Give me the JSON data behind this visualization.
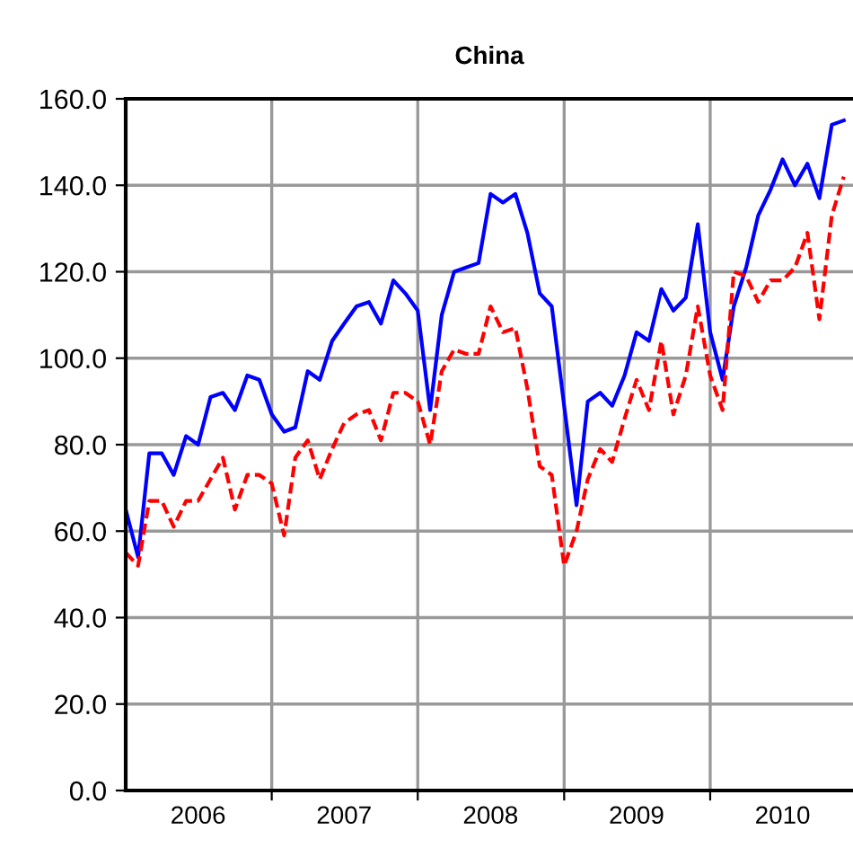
{
  "chart_data": {
    "type": "line",
    "title": "China",
    "x": [
      "2006-01",
      "2006-02",
      "2006-03",
      "2006-04",
      "2006-05",
      "2006-06",
      "2006-07",
      "2006-08",
      "2006-09",
      "2006-10",
      "2006-11",
      "2006-12",
      "2007-01",
      "2007-02",
      "2007-03",
      "2007-04",
      "2007-05",
      "2007-06",
      "2007-07",
      "2007-08",
      "2007-09",
      "2007-10",
      "2007-11",
      "2007-12",
      "2008-01",
      "2008-02",
      "2008-03",
      "2008-04",
      "2008-05",
      "2008-06",
      "2008-07",
      "2008-08",
      "2008-09",
      "2008-10",
      "2008-11",
      "2008-12",
      "2009-01",
      "2009-02",
      "2009-03",
      "2009-04",
      "2009-05",
      "2009-06",
      "2009-07",
      "2009-08",
      "2009-09",
      "2009-10",
      "2009-11",
      "2009-12",
      "2010-01",
      "2010-02",
      "2010-03",
      "2010-04",
      "2010-05",
      "2010-06",
      "2010-07",
      "2010-08",
      "2010-09",
      "2010-10",
      "2010-11",
      "2010-12"
    ],
    "series": [
      {
        "color": "#0000ff",
        "line_style": "solid",
        "values": [
          65,
          54,
          78,
          78,
          73,
          82,
          80,
          91,
          92,
          88,
          96,
          95,
          87,
          83,
          84,
          97,
          95,
          104,
          108,
          112,
          113,
          108,
          118,
          115,
          111,
          88,
          110,
          120,
          121,
          122,
          138,
          136,
          138,
          129,
          115,
          112,
          89,
          66,
          90,
          92,
          89,
          96,
          106,
          104,
          116,
          111,
          114,
          131,
          106,
          95,
          112,
          121,
          133,
          139,
          146,
          140,
          145,
          137,
          154,
          155
        ]
      },
      {
        "color": "#ff0000",
        "line_style": "dashed",
        "values": [
          55,
          52,
          67,
          67,
          61,
          67,
          67,
          72,
          77,
          65,
          73,
          73,
          71,
          59,
          77,
          81,
          72,
          79,
          85,
          87,
          88,
          81,
          92,
          92,
          90,
          80,
          97,
          102,
          101,
          101,
          112,
          106,
          107,
          93,
          75,
          73,
          52,
          60,
          72,
          79,
          76,
          86,
          95,
          88,
          104,
          87,
          96,
          112,
          96,
          88,
          120,
          119,
          113,
          118,
          118,
          121,
          129,
          109,
          133,
          142
        ]
      }
    ],
    "xlim": [
      "2006-01-01",
      "2010-12-24"
    ],
    "xticks": [
      {
        "value": "2006-07-01",
        "label": "2006"
      },
      {
        "value": "2007-01-01",
        "label": null
      },
      {
        "value": "2007-07-01",
        "label": "2007"
      },
      {
        "value": "2008-01-01",
        "label": null
      },
      {
        "value": "2008-07-01",
        "label": "2008"
      },
      {
        "value": "2009-01-01",
        "label": null
      },
      {
        "value": "2009-07-01",
        "label": "2009"
      },
      {
        "value": "2010-01-01",
        "label": null
      },
      {
        "value": "2010-07-01",
        "label": "2010"
      }
    ],
    "ylim": [
      0,
      160
    ],
    "yticks": [
      {
        "value": 0,
        "label": "0.0"
      },
      {
        "value": 20,
        "label": "20.0"
      },
      {
        "value": 40,
        "label": "40.0"
      },
      {
        "value": 60,
        "label": "60.0"
      },
      {
        "value": 80,
        "label": "80.0"
      },
      {
        "value": 100,
        "label": "100.0"
      },
      {
        "value": 120,
        "label": "120.0"
      },
      {
        "value": 140,
        "label": "140.0"
      },
      {
        "value": 160,
        "label": "160.0"
      }
    ],
    "grid": true,
    "marker": "none"
  }
}
